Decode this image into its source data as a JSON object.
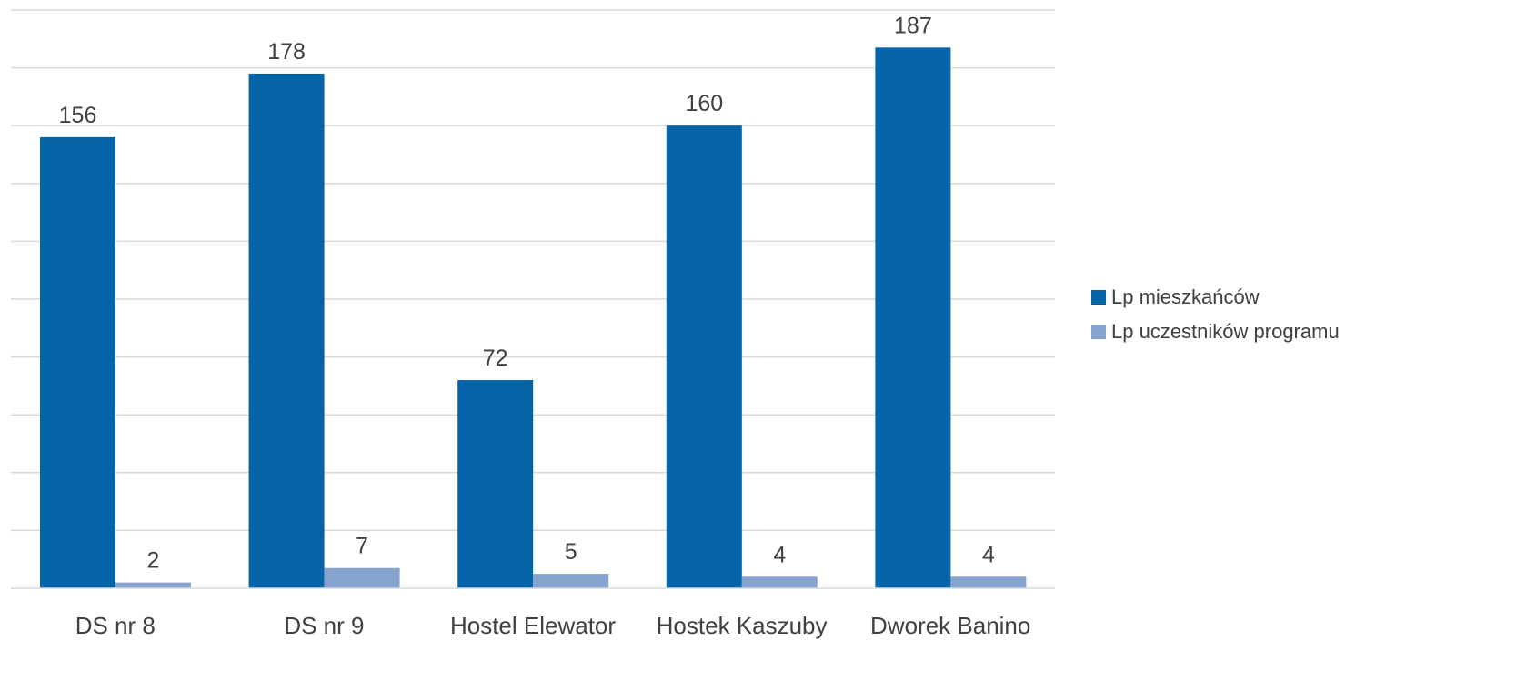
{
  "chart_data": {
    "type": "bar",
    "categories": [
      "DS nr 8",
      "DS nr 9",
      "Hostel Elewator",
      "Hostek Kaszuby",
      "Dworek Banino"
    ],
    "series": [
      {
        "name": "Lp mieszkańców",
        "values": [
          156,
          178,
          72,
          160,
          187
        ],
        "color": "#0563a8"
      },
      {
        "name": "Lp uczestników programu",
        "values": [
          2,
          7,
          5,
          4,
          4
        ],
        "color": "#86a3cf"
      }
    ],
    "title": "",
    "xlabel": "",
    "ylabel": "",
    "ylim": [
      0,
      200
    ],
    "y_gridline_step": 20,
    "grid": true,
    "legend_position": "right",
    "data_labels": true,
    "gridline_color": "#d9d9d9",
    "text_color": "#404040"
  }
}
